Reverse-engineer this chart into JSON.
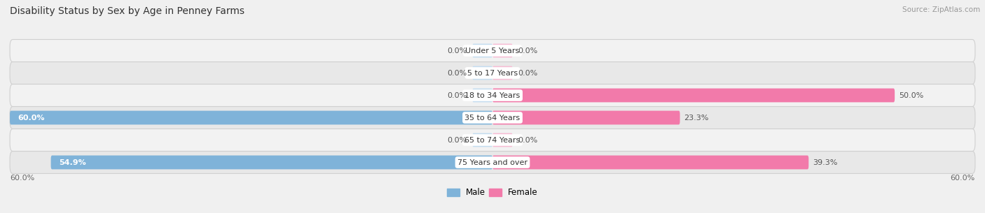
{
  "title": "Disability Status by Sex by Age in Penney Farms",
  "source": "Source: ZipAtlas.com",
  "categories": [
    "Under 5 Years",
    "5 to 17 Years",
    "18 to 34 Years",
    "35 to 64 Years",
    "65 to 74 Years",
    "75 Years and over"
  ],
  "male_values": [
    0.0,
    0.0,
    0.0,
    60.0,
    0.0,
    54.9
  ],
  "female_values": [
    0.0,
    0.0,
    50.0,
    23.3,
    0.0,
    39.3
  ],
  "male_color": "#7fb3d9",
  "female_color": "#f27aaa",
  "male_color_light": "#c5ddf0",
  "female_color_light": "#f7bdd5",
  "male_label": "Male",
  "female_label": "Female",
  "xlim": 60.0,
  "bar_height": 0.62,
  "row_colors": [
    "#f2f2f2",
    "#e8e8e8",
    "#f2f2f2",
    "#e8e8e8",
    "#f2f2f2",
    "#e8e8e8"
  ],
  "title_fontsize": 10,
  "value_fontsize": 8,
  "cat_fontsize": 8,
  "axis_tick_fontsize": 8
}
